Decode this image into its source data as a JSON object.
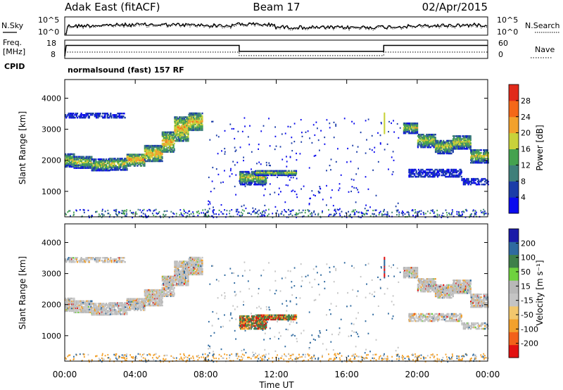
{
  "header": {
    "title": "Adak East (fitACF)",
    "beam": "Beam 17",
    "date": "02/Apr/2015"
  },
  "noise_panel": {
    "left_label": "N.Sky",
    "right_label": "N.Search",
    "tick_top": "10^5",
    "tick_bottom": "10^0"
  },
  "freq_panel": {
    "left_label_top": "Freq.",
    "left_label_unit": "[MHz]",
    "left_ticks": [
      "18",
      "8"
    ],
    "right_ticks": [
      "60",
      "0"
    ],
    "right_label": "Nave",
    "cpid_label": "CPID",
    "cpid_value": "normalsound (fast) 157 RF"
  },
  "colors": {
    "power_scale": [
      "#0a0aee",
      "#1b3ca8",
      "#3f7f7a",
      "#45a24f",
      "#c8d23a",
      "#f2a12c",
      "#f46818",
      "#e12a1a"
    ],
    "velocity_scale": [
      "#e21111",
      "#f2611a",
      "#f2a12c",
      "#f2c76d",
      "#c4c4c4",
      "#b8b8b8",
      "#6fd23f",
      "#3f7f4a",
      "#2f6aa0",
      "#1a1aa8"
    ]
  },
  "chart_data": [
    {
      "type": "heatmap",
      "name": "power-panel",
      "ylabel": "Slant Range [km]",
      "y_ticks": [
        1000,
        2000,
        3000,
        4000
      ],
      "ylim": [
        180,
        4600
      ],
      "xlim": [
        0,
        24
      ],
      "colorbar": {
        "label": "Power [dB]",
        "ticks": [
          4,
          8,
          12,
          16,
          20,
          24,
          28
        ],
        "range": [
          0,
          32
        ]
      },
      "scatter_bands": [
        {
          "t0": 0.0,
          "t1": 0.5,
          "r0": 1820,
          "r1": 2250
        },
        {
          "t0": 0.5,
          "t1": 1.5,
          "r0": 1780,
          "r1": 2180
        },
        {
          "t0": 1.5,
          "t1": 2.5,
          "r0": 1700,
          "r1": 2080
        },
        {
          "t0": 2.5,
          "t1": 3.5,
          "r0": 1720,
          "r1": 2120
        },
        {
          "t0": 3.5,
          "t1": 4.5,
          "r0": 1850,
          "r1": 2250
        },
        {
          "t0": 4.5,
          "t1": 5.5,
          "r0": 2000,
          "r1": 2500
        },
        {
          "t0": 5.5,
          "t1": 6.2,
          "r0": 2300,
          "r1": 2950
        },
        {
          "t0": 6.2,
          "t1": 7.0,
          "r0": 2650,
          "r1": 3450
        },
        {
          "t0": 7.0,
          "t1": 7.8,
          "r0": 3000,
          "r1": 3550
        },
        {
          "t0": 0.0,
          "t1": 3.4,
          "r0": 3400,
          "r1": 3560
        },
        {
          "t0": 9.9,
          "t1": 11.4,
          "r0": 1250,
          "r1": 1700
        },
        {
          "t0": 10.8,
          "t1": 13.1,
          "r0": 1550,
          "r1": 1700
        },
        {
          "t0": 19.2,
          "t1": 20.0,
          "r0": 2900,
          "r1": 3250
        },
        {
          "t0": 20.0,
          "t1": 21.0,
          "r0": 2450,
          "r1": 2900
        },
        {
          "t0": 21.0,
          "t1": 22.0,
          "r0": 2250,
          "r1": 2700
        },
        {
          "t0": 22.0,
          "t1": 23.0,
          "r0": 2400,
          "r1": 2850
        },
        {
          "t0": 23.0,
          "t1": 24.0,
          "r0": 1950,
          "r1": 2400
        },
        {
          "t0": 19.5,
          "t1": 22.5,
          "r0": 1500,
          "r1": 1750
        },
        {
          "t0": 22.5,
          "t1": 24.0,
          "r0": 1250,
          "r1": 1450
        }
      ]
    },
    {
      "type": "heatmap",
      "name": "velocity-panel",
      "ylabel": "Slant Range [km]",
      "y_ticks": [
        1000,
        2000,
        3000,
        4000
      ],
      "ylim": [
        180,
        4600
      ],
      "xlim": [
        0,
        24
      ],
      "xlabel": "Time UT",
      "x_ticks": [
        "00:00",
        "04:00",
        "08:00",
        "12:00",
        "16:00",
        "20:00",
        "00:00"
      ],
      "x_tick_hours": [
        0,
        4,
        8,
        12,
        16,
        20,
        24
      ],
      "colorbar": {
        "label": "Velocity [m s⁻¹]",
        "ticks": [
          "-200",
          "-100",
          "-50",
          "-15",
          "15",
          "50",
          "100",
          "200"
        ],
        "range": [
          -250,
          250
        ]
      }
    }
  ]
}
